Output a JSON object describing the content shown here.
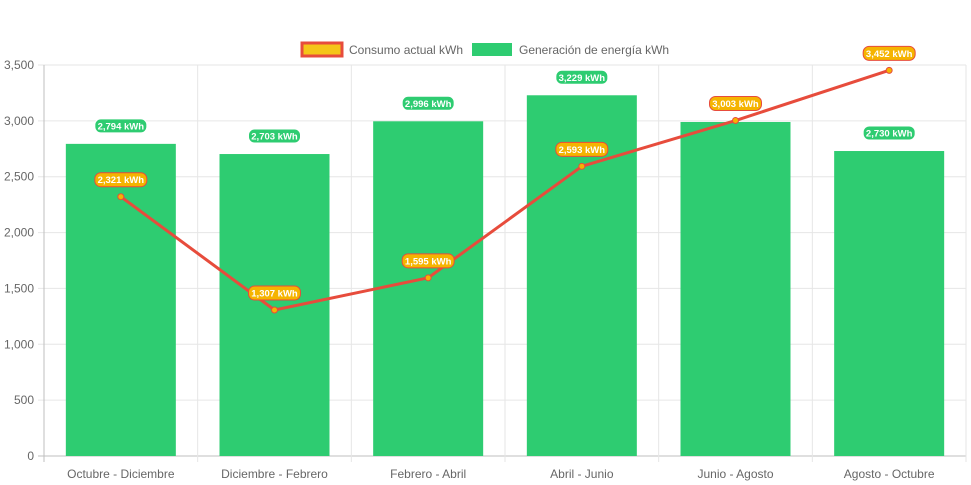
{
  "chart_data": {
    "type": "bar",
    "categories": [
      "Octubre - Diciembre",
      "Diciembre - Febrero",
      "Febrero - Abril",
      "Abril - Junio",
      "Junio - Agosto",
      "Agosto - Octubre"
    ],
    "series": [
      {
        "name": "Consumo actual kWh",
        "type": "line",
        "color": "#e74c3c",
        "point_color": "#f5b400",
        "values": [
          2321,
          1307,
          1595,
          2593,
          3003,
          3452
        ],
        "labels": [
          "2,321 kWh",
          "1,307 kWh",
          "1,595 kWh",
          "2,593 kWh",
          "3,003 kWh",
          "3,452 kWh"
        ]
      },
      {
        "name": "Generación de energía kWh",
        "type": "bar",
        "color": "#2ecc71",
        "values": [
          2794,
          2703,
          2996,
          3229,
          2990,
          2730
        ],
        "labels": [
          "2,794 kWh",
          "2,703 kWh",
          "2,996 kWh",
          "3,229 kWh",
          "",
          "2,730 kWh"
        ]
      }
    ],
    "ylim": [
      0,
      3500
    ],
    "yticks": [
      0,
      500,
      1000,
      1500,
      2000,
      2500,
      3000,
      3500
    ],
    "ytick_labels": [
      "0",
      "500",
      "1,000",
      "1,500",
      "2,000",
      "2,500",
      "3,000",
      "3,500"
    ],
    "grid": true,
    "legend_position": "top"
  }
}
